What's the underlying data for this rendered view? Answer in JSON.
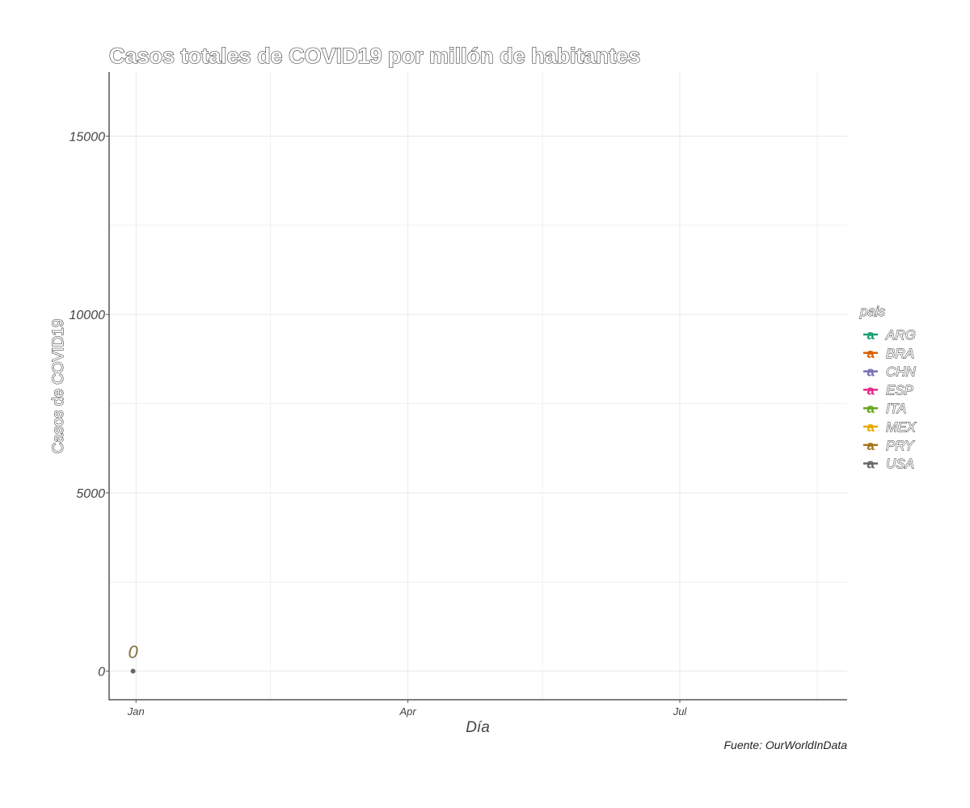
{
  "chart_data": {
    "type": "line",
    "title": "Casos totales de COVID19 por millón de habitantes",
    "xlabel": "Día",
    "ylabel": "Casos de COVID19",
    "caption": "Fuente: OurWorldInData",
    "x_axis": {
      "type": "date",
      "range": [
        "2019-12-23",
        "2020-08-26"
      ],
      "ticks": [
        {
          "date": "2020-01-01",
          "label": "Jan"
        },
        {
          "date": "2020-04-01",
          "label": "Apr"
        },
        {
          "date": "2020-07-01",
          "label": "Jul"
        }
      ],
      "minor_ticks": [
        "2020-02-15",
        "2020-05-16",
        "2020-08-16"
      ]
    },
    "y_axis": {
      "range": [
        -800,
        16800
      ],
      "ticks": [
        0,
        5000,
        10000,
        15000
      ],
      "minor_ticks": [
        2500,
        7500,
        12500
      ]
    },
    "grid": true,
    "legend": {
      "title": "pais",
      "position": "right",
      "key_glyph": "a",
      "entries": [
        {
          "label": "ARG",
          "color": "#1b9e77"
        },
        {
          "label": "BRA",
          "color": "#d95f02"
        },
        {
          "label": "CHN",
          "color": "#7570b3"
        },
        {
          "label": "ESP",
          "color": "#e7298a"
        },
        {
          "label": "ITA",
          "color": "#66a61e"
        },
        {
          "label": "MEX",
          "color": "#e6ab02"
        },
        {
          "label": "PRY",
          "color": "#a6761d"
        },
        {
          "label": "USA",
          "color": "#666666"
        }
      ]
    },
    "series": [
      {
        "name": "ARG",
        "color": "#1b9e77",
        "points": [
          {
            "x": "2019-12-31",
            "y": 0
          }
        ]
      }
    ],
    "annotations": [
      {
        "x": "2019-12-31",
        "y": 0,
        "text": "0",
        "color": "#7f7040"
      }
    ],
    "point_color": "#666666"
  }
}
